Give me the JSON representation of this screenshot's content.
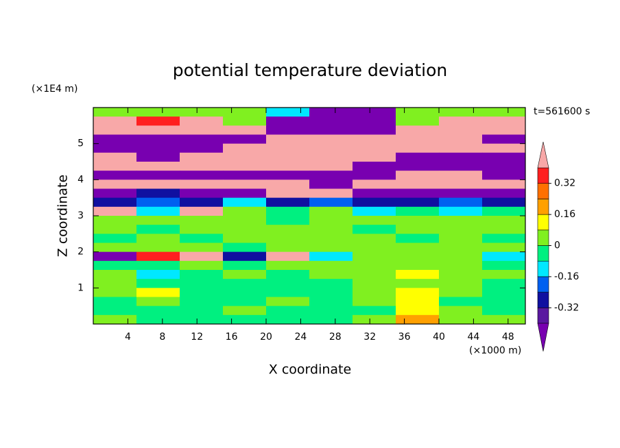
{
  "chart_data": {
    "type": "contour",
    "title": "potential temperature deviation",
    "y_unit": "(×1E4 m)",
    "x_unit": "(×1000 m)",
    "time_label": "t=561600 s",
    "xlabel": "X coordinate",
    "ylabel": "Z coordinate",
    "xlim": [
      0,
      50
    ],
    "ylim": [
      0,
      6
    ],
    "xticks": [
      4,
      8,
      12,
      16,
      20,
      24,
      28,
      32,
      36,
      40,
      44,
      48
    ],
    "yticks": [
      1,
      2,
      3,
      4,
      5
    ],
    "x": [
      2.5,
      7.5,
      12.5,
      17.5,
      22.5,
      27.5,
      32.5,
      37.5,
      42.5,
      47.5
    ],
    "y": [
      5.875,
      5.625,
      5.375,
      5.125,
      4.875,
      4.625,
      4.375,
      4.125,
      3.875,
      3.625,
      3.375,
      3.125,
      2.875,
      2.625,
      2.375,
      2.125,
      1.875,
      1.625,
      1.375,
      1.125,
      0.875,
      0.625,
      0.375,
      0.125
    ],
    "z": [
      [
        0.04,
        0.04,
        0.04,
        0.04,
        -0.1,
        -0.5,
        -0.5,
        0.04,
        0.04,
        0.04
      ],
      [
        0.5,
        0.36,
        0.5,
        0.04,
        -0.5,
        -0.5,
        -0.5,
        0.04,
        0.5,
        0.5
      ],
      [
        0.5,
        0.5,
        0.5,
        0.5,
        -0.5,
        -0.5,
        -0.5,
        0.5,
        0.5,
        0.5
      ],
      [
        -0.5,
        -0.5,
        -0.5,
        -0.5,
        0.5,
        0.5,
        0.5,
        0.5,
        0.5,
        -0.5
      ],
      [
        -0.5,
        -0.5,
        -0.5,
        0.5,
        0.5,
        0.5,
        0.5,
        0.5,
        0.5,
        0.5
      ],
      [
        0.5,
        -0.5,
        0.5,
        0.5,
        0.5,
        0.5,
        0.5,
        -0.5,
        -0.5,
        -0.5
      ],
      [
        0.5,
        0.5,
        0.5,
        0.5,
        0.5,
        0.5,
        -0.5,
        -0.5,
        -0.5,
        -0.5
      ],
      [
        -0.5,
        -0.5,
        -0.5,
        -0.5,
        -0.5,
        -0.5,
        -0.5,
        0.5,
        0.5,
        -0.5
      ],
      [
        0.5,
        0.5,
        0.5,
        0.5,
        0.5,
        -0.5,
        0.5,
        0.5,
        0.5,
        0.5
      ],
      [
        -0.5,
        -0.3,
        -0.5,
        -0.5,
        0.5,
        0.5,
        -0.5,
        -0.5,
        -0.5,
        -0.5
      ],
      [
        -0.3,
        -0.2,
        -0.3,
        -0.1,
        -0.3,
        -0.2,
        -0.3,
        -0.3,
        -0.2,
        -0.3
      ],
      [
        0.5,
        -0.1,
        0.5,
        0.04,
        -0.04,
        0.04,
        -0.1,
        -0.04,
        -0.1,
        -0.04
      ],
      [
        0.04,
        0.04,
        0.04,
        0.04,
        -0.04,
        0.04,
        0.04,
        0.04,
        0.04,
        0.04
      ],
      [
        0.04,
        -0.04,
        0.04,
        0.04,
        0.04,
        0.04,
        -0.04,
        0.04,
        0.04,
        0.04
      ],
      [
        -0.04,
        0.04,
        -0.04,
        0.04,
        0.04,
        0.04,
        0.04,
        -0.04,
        0.04,
        -0.04
      ],
      [
        0.04,
        0.04,
        0.04,
        -0.04,
        0.04,
        0.04,
        0.04,
        0.04,
        0.04,
        0.04
      ],
      [
        -0.5,
        0.36,
        0.5,
        -0.3,
        0.5,
        -0.1,
        0.04,
        0.04,
        0.04,
        -0.1
      ],
      [
        -0.04,
        -0.04,
        0.04,
        -0.04,
        0.04,
        0.04,
        0.04,
        0.04,
        0.04,
        -0.04
      ],
      [
        0.04,
        -0.1,
        -0.04,
        0.04,
        -0.04,
        0.04,
        0.04,
        0.12,
        0.04,
        0.04
      ],
      [
        0.04,
        -0.04,
        -0.04,
        -0.04,
        -0.04,
        -0.04,
        0.04,
        0.04,
        0.04,
        -0.04
      ],
      [
        0.04,
        0.12,
        -0.04,
        -0.04,
        -0.04,
        -0.04,
        0.04,
        0.12,
        0.04,
        -0.04
      ],
      [
        -0.04,
        0.04,
        -0.04,
        -0.04,
        0.04,
        -0.04,
        0.04,
        0.12,
        -0.04,
        -0.04
      ],
      [
        -0.04,
        -0.04,
        -0.04,
        0.04,
        -0.04,
        -0.04,
        -0.04,
        0.12,
        0.04,
        -0.04
      ],
      [
        0.04,
        -0.04,
        -0.04,
        -0.04,
        -0.04,
        -0.04,
        0.04,
        0.2,
        0.04,
        0.04
      ]
    ],
    "levels": [
      -0.4,
      -0.32,
      -0.24,
      -0.16,
      -0.08,
      0,
      0.08,
      0.16,
      0.24,
      0.32,
      0.4
    ],
    "colors": [
      "#7800b0",
      "#5a18a0",
      "#1010a0",
      "#0060f0",
      "#00e8ff",
      "#00f080",
      "#80f020",
      "#ffff00",
      "#ffa000",
      "#ff7000",
      "#ff2020",
      "#f8a8a8"
    ],
    "colorbar_ticks": [
      -0.32,
      -0.16,
      0,
      0.16,
      0.32
    ]
  }
}
